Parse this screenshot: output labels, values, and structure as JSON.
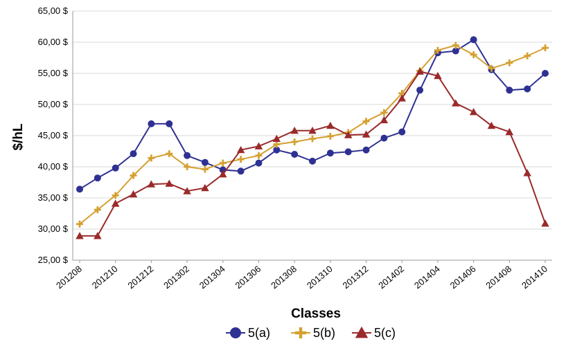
{
  "chart_data": {
    "type": "line",
    "xlabel": "Classes",
    "ylabel": "$/hL",
    "ylim": [
      25,
      65
    ],
    "y_ticks": [
      "25,00 $",
      "30,00 $",
      "35,00 $",
      "40,00 $",
      "45,00 $",
      "50,00 $",
      "55,00 $",
      "60,00 $",
      "65,00 $"
    ],
    "y_tick_values": [
      25,
      30,
      35,
      40,
      45,
      50,
      55,
      60,
      65
    ],
    "x": [
      "201208",
      "201209",
      "201210",
      "201211",
      "201212",
      "201301",
      "201302",
      "201303",
      "201304",
      "201305",
      "201306",
      "201307",
      "201308",
      "201309",
      "201310",
      "201311",
      "201312",
      "201401",
      "201402",
      "201403",
      "201404",
      "201405",
      "201406",
      "201407",
      "201408",
      "201409",
      "201410"
    ],
    "x_tick_labels": [
      "201208",
      "201210",
      "201212",
      "201302",
      "201304",
      "201306",
      "201308",
      "201310",
      "201312",
      "201402",
      "201404",
      "201406",
      "201408",
      "201410"
    ],
    "grid": "horizontal",
    "legend_position": "bottom",
    "series": [
      {
        "name": "5(a)",
        "color": "#2e3192",
        "marker": "circle",
        "values": [
          36.4,
          38.2,
          39.8,
          42.1,
          46.9,
          46.9,
          41.8,
          40.7,
          39.5,
          39.3,
          40.6,
          42.7,
          42.0,
          40.9,
          42.2,
          42.4,
          42.7,
          44.6,
          45.6,
          52.3,
          58.3,
          58.6,
          60.4,
          55.6,
          52.3,
          52.5,
          55.0
        ]
      },
      {
        "name": "5(b)",
        "color": "#d4a030",
        "marker": "plus",
        "values": [
          30.8,
          33.1,
          35.4,
          38.6,
          41.4,
          42.1,
          40.0,
          39.6,
          40.6,
          41.2,
          41.8,
          43.6,
          44.0,
          44.5,
          44.9,
          45.5,
          47.3,
          48.7,
          51.8,
          55.4,
          58.7,
          59.5,
          58.0,
          55.8,
          56.7,
          57.8,
          59.1
        ]
      },
      {
        "name": "5(c)",
        "color": "#9a2a2a",
        "marker": "triangle",
        "values": [
          28.9,
          28.9,
          34.1,
          35.6,
          37.2,
          37.3,
          36.1,
          36.6,
          38.8,
          42.7,
          43.3,
          44.5,
          45.8,
          45.8,
          46.6,
          45.1,
          45.2,
          47.5,
          51.0,
          55.3,
          54.6,
          50.2,
          48.8,
          46.6,
          45.6,
          39.0,
          30.9
        ]
      }
    ]
  }
}
